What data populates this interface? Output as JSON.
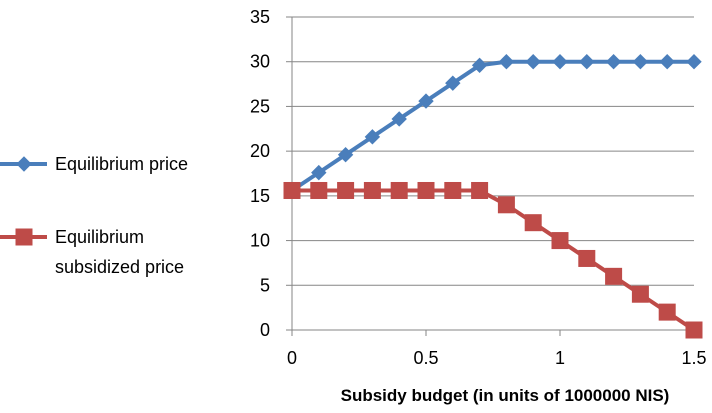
{
  "chart_data": {
    "type": "line",
    "title": "",
    "xlabel": "Subsidy budget (in units of 1000000 NIS)",
    "ylabel": "",
    "xlim": [
      0,
      1.5
    ],
    "ylim": [
      0,
      35
    ],
    "x_ticks": [
      0,
      0.5,
      1,
      1.5
    ],
    "x_tick_labels": [
      "0",
      "0.5",
      "1",
      "1.5"
    ],
    "y_ticks": [
      0,
      5,
      10,
      15,
      20,
      25,
      30,
      35
    ],
    "y_tick_labels": [
      "0",
      "5",
      "10",
      "15",
      "20",
      "25",
      "30",
      "35"
    ],
    "grid": "horizontal",
    "legend_position": "left",
    "x": [
      0,
      0.1,
      0.2,
      0.3,
      0.4,
      0.5,
      0.6,
      0.7,
      0.8,
      0.9,
      1.0,
      1.1,
      1.2,
      1.3,
      1.4,
      1.5
    ],
    "series": [
      {
        "name": "Equilibrium price",
        "legend_lines": [
          "Equilibrium price"
        ],
        "color": "#4a7ebb",
        "marker": "diamond",
        "values": [
          15.6,
          17.6,
          19.6,
          21.6,
          23.6,
          25.6,
          27.6,
          29.6,
          30,
          30,
          30,
          30,
          30,
          30,
          30,
          30
        ]
      },
      {
        "name": "Equilibrium subsidized price",
        "legend_lines": [
          "Equilibrium",
          "subsidized price"
        ],
        "color": "#be4b48",
        "marker": "square",
        "values": [
          15.6,
          15.6,
          15.6,
          15.6,
          15.6,
          15.6,
          15.6,
          15.6,
          14,
          12,
          10,
          8,
          6,
          4,
          2,
          0
        ]
      }
    ]
  }
}
